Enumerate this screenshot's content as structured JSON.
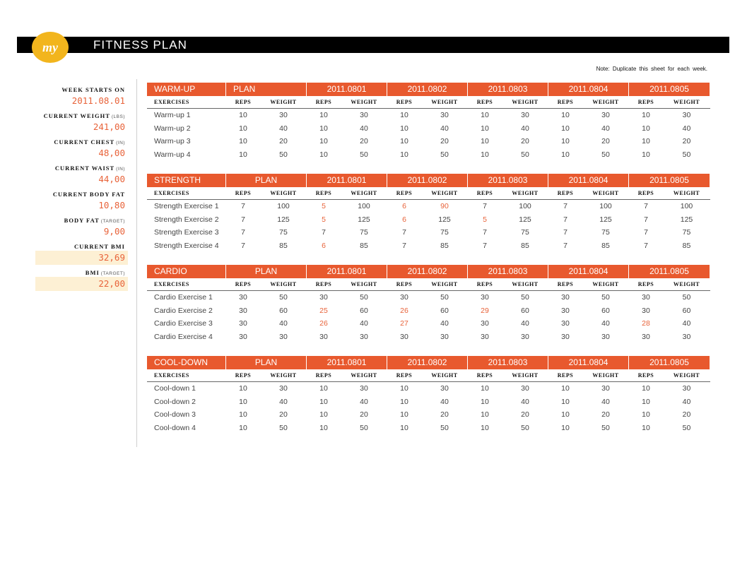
{
  "header": {
    "logo_text": "my",
    "title": "FITNESS PLAN"
  },
  "note": "Note: Duplicate this sheet for each week.",
  "sidebar": [
    {
      "label": "WEEK STARTS ON",
      "unit": "",
      "value": "2011.08.01",
      "highlight": false
    },
    {
      "label": "CURRENT WEIGHT",
      "unit": "(LBS)",
      "value": "241,00",
      "highlight": false
    },
    {
      "label": "CURRENT CHEST",
      "unit": "(IN)",
      "value": "48,00",
      "highlight": false
    },
    {
      "label": "CURRENT WAIST",
      "unit": "(IN)",
      "value": "44,00",
      "highlight": false
    },
    {
      "label": "CURRENT BODY FAT",
      "unit": "",
      "value": "10,80",
      "highlight": false
    },
    {
      "label": "BODY FAT",
      "unit": "(TARGET)",
      "value": "9,00",
      "highlight": false
    },
    {
      "label": "CURRENT BMI",
      "unit": "",
      "value": "32,69",
      "highlight": true
    },
    {
      "label": "BMI",
      "unit": "(TARGET)",
      "value": "22,00",
      "highlight": true
    }
  ],
  "column_headers": {
    "exercises": "EXERCISES",
    "reps": "REPS",
    "weight": "WEIGHT"
  },
  "days": [
    "2011.0801",
    "2011.0802",
    "2011.0803",
    "2011.0804",
    "2011.0805"
  ],
  "colors": {
    "accent": "#e8592e",
    "highlight_text": "#e8633a",
    "highlight_bg": "#fdf0d4",
    "logo": "#f2b51d"
  },
  "sections": [
    {
      "title": "WARM-UP",
      "plan_label": "PLAN",
      "plan_align": "left",
      "rows": [
        {
          "name": "Warm-up 1",
          "vals": [
            [
              10,
              30
            ],
            [
              10,
              30
            ],
            [
              10,
              30
            ],
            [
              10,
              30
            ],
            [
              10,
              30
            ],
            [
              10,
              30
            ]
          ],
          "red": []
        },
        {
          "name": "Warm-up 2",
          "vals": [
            [
              10,
              40
            ],
            [
              10,
              40
            ],
            [
              10,
              40
            ],
            [
              10,
              40
            ],
            [
              10,
              40
            ],
            [
              10,
              40
            ]
          ],
          "red": []
        },
        {
          "name": "Warm-up 3",
          "vals": [
            [
              10,
              20
            ],
            [
              10,
              20
            ],
            [
              10,
              20
            ],
            [
              10,
              20
            ],
            [
              10,
              20
            ],
            [
              10,
              20
            ]
          ],
          "red": []
        },
        {
          "name": "Warm-up 4",
          "vals": [
            [
              10,
              50
            ],
            [
              10,
              50
            ],
            [
              10,
              50
            ],
            [
              10,
              50
            ],
            [
              10,
              50
            ],
            [
              10,
              50
            ]
          ],
          "red": []
        }
      ]
    },
    {
      "title": "STRENGTH",
      "plan_label": "PLAN",
      "plan_align": "center",
      "rows": [
        {
          "name": "Strength Exercise 1",
          "vals": [
            [
              7,
              100
            ],
            [
              5,
              100
            ],
            [
              6,
              90
            ],
            [
              7,
              100
            ],
            [
              7,
              100
            ],
            [
              7,
              100
            ]
          ],
          "red": [
            2,
            4,
            5
          ]
        },
        {
          "name": "Strength Exercise 2",
          "vals": [
            [
              7,
              125
            ],
            [
              5,
              125
            ],
            [
              6,
              125
            ],
            [
              5,
              125
            ],
            [
              7,
              125
            ],
            [
              7,
              125
            ]
          ],
          "red": [
            2,
            4,
            6
          ]
        },
        {
          "name": "Strength Exercise 3",
          "vals": [
            [
              7,
              75
            ],
            [
              7,
              75
            ],
            [
              7,
              75
            ],
            [
              7,
              75
            ],
            [
              7,
              75
            ],
            [
              7,
              75
            ]
          ],
          "red": []
        },
        {
          "name": "Strength Exercise 4",
          "vals": [
            [
              7,
              85
            ],
            [
              6,
              85
            ],
            [
              7,
              85
            ],
            [
              7,
              85
            ],
            [
              7,
              85
            ],
            [
              7,
              85
            ]
          ],
          "red": [
            2
          ]
        }
      ]
    },
    {
      "title": "CARDIO",
      "plan_label": "PLAN",
      "plan_align": "center",
      "rows": [
        {
          "name": "Cardio Exercise 1",
          "vals": [
            [
              30,
              50
            ],
            [
              30,
              50
            ],
            [
              30,
              50
            ],
            [
              30,
              50
            ],
            [
              30,
              50
            ],
            [
              30,
              50
            ]
          ],
          "red": []
        },
        {
          "name": "Cardio Exercise 2",
          "vals": [
            [
              30,
              60
            ],
            [
              25,
              60
            ],
            [
              26,
              60
            ],
            [
              29,
              60
            ],
            [
              30,
              60
            ],
            [
              30,
              60
            ]
          ],
          "red": [
            2,
            4,
            6
          ]
        },
        {
          "name": "Cardio Exercise 3",
          "vals": [
            [
              30,
              40
            ],
            [
              26,
              40
            ],
            [
              27,
              40
            ],
            [
              30,
              40
            ],
            [
              30,
              40
            ],
            [
              28,
              40
            ]
          ],
          "red": [
            2,
            4,
            10
          ]
        },
        {
          "name": "Cardio Exercise 4",
          "vals": [
            [
              30,
              30
            ],
            [
              30,
              30
            ],
            [
              30,
              30
            ],
            [
              30,
              30
            ],
            [
              30,
              30
            ],
            [
              30,
              30
            ]
          ],
          "red": []
        }
      ]
    },
    {
      "title": "COOL-DOWN",
      "plan_label": "PLAN",
      "plan_align": "center",
      "rows": [
        {
          "name": "Cool-down 1",
          "vals": [
            [
              10,
              30
            ],
            [
              10,
              30
            ],
            [
              10,
              30
            ],
            [
              10,
              30
            ],
            [
              10,
              30
            ],
            [
              10,
              30
            ]
          ],
          "red": []
        },
        {
          "name": "Cool-down 2",
          "vals": [
            [
              10,
              40
            ],
            [
              10,
              40
            ],
            [
              10,
              40
            ],
            [
              10,
              40
            ],
            [
              10,
              40
            ],
            [
              10,
              40
            ]
          ],
          "red": []
        },
        {
          "name": "Cool-down 3",
          "vals": [
            [
              10,
              20
            ],
            [
              10,
              20
            ],
            [
              10,
              20
            ],
            [
              10,
              20
            ],
            [
              10,
              20
            ],
            [
              10,
              20
            ]
          ],
          "red": []
        },
        {
          "name": "Cool-down 4",
          "vals": [
            [
              10,
              50
            ],
            [
              10,
              50
            ],
            [
              10,
              50
            ],
            [
              10,
              50
            ],
            [
              10,
              50
            ],
            [
              10,
              50
            ]
          ],
          "red": []
        }
      ]
    }
  ]
}
